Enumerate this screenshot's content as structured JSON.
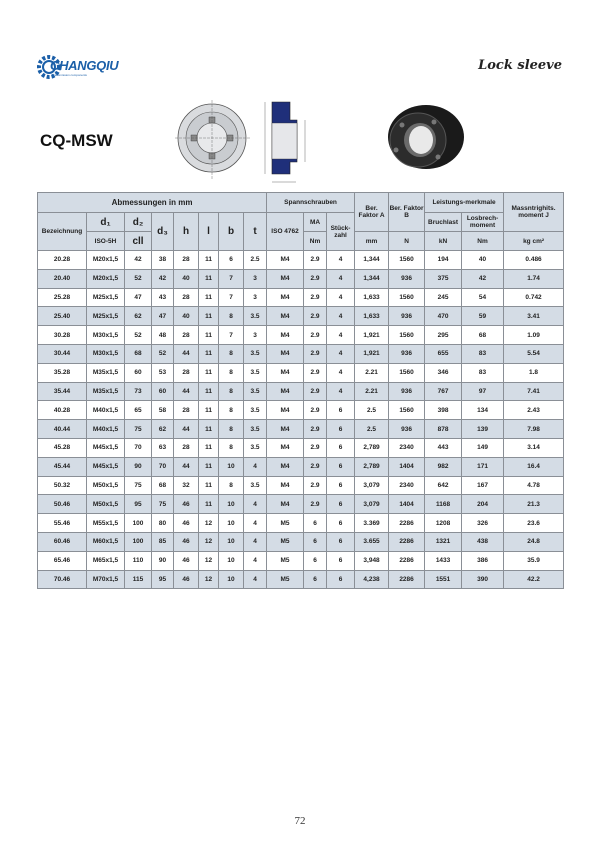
{
  "header": {
    "brand": "CHANGQIU",
    "brand_sub": "Transmission components",
    "category": "Lock sleeve",
    "model": "CQ-MSW"
  },
  "table": {
    "group_dims": "Abmessungen in mm",
    "group_screws": "Spannschrauben",
    "col_bez": "Bezeichnung",
    "col_d1": "d₁",
    "col_d1_sub": "ISO-5H",
    "col_d2": "d₂",
    "col_d2_sub": "cll",
    "col_d3": "d₃",
    "col_h": "h",
    "col_l": "l",
    "col_b": "b",
    "col_t": "t",
    "col_iso": "ISO 4762",
    "col_ma": "MA",
    "col_ma_unit": "Nm",
    "col_stueck": "Stück-zahl",
    "col_a": "Ber. Faktor A",
    "col_a_unit": "mm",
    "col_b2": "Ber. Faktor B",
    "col_b2_unit": "N",
    "group_perf": "Leistungs-merkmale",
    "col_bruch": "Bruchlast",
    "col_bruch_unit": "kN",
    "col_los": "Losbrech-moment",
    "col_los_unit": "Nm",
    "col_j": "Massntrighits. moment J",
    "col_j_unit": "kg cm²",
    "rows": [
      [
        "20.28",
        "M20x1,5",
        "42",
        "38",
        "28",
        "11",
        "6",
        "2.5",
        "M4",
        "2.9",
        "4",
        "1,344",
        "1560",
        "194",
        "40",
        "0.486"
      ],
      [
        "20.40",
        "M20x1,5",
        "52",
        "42",
        "40",
        "11",
        "7",
        "3",
        "M4",
        "2.9",
        "4",
        "1,344",
        "936",
        "375",
        "42",
        "1.74"
      ],
      [
        "25.28",
        "M25x1,5",
        "47",
        "43",
        "28",
        "11",
        "7",
        "3",
        "M4",
        "2.9",
        "4",
        "1,633",
        "1560",
        "245",
        "54",
        "0.742"
      ],
      [
        "25.40",
        "M25x1,5",
        "62",
        "47",
        "40",
        "11",
        "8",
        "3.5",
        "M4",
        "2.9",
        "4",
        "1,633",
        "936",
        "470",
        "59",
        "3.41"
      ],
      [
        "30.28",
        "M30x1,5",
        "52",
        "48",
        "28",
        "11",
        "7",
        "3",
        "M4",
        "2.9",
        "4",
        "1,921",
        "1560",
        "295",
        "68",
        "1.09"
      ],
      [
        "30.44",
        "M30x1,5",
        "68",
        "52",
        "44",
        "11",
        "8",
        "3.5",
        "M4",
        "2.9",
        "4",
        "1,921",
        "936",
        "655",
        "83",
        "5.54"
      ],
      [
        "35.28",
        "M35x1,5",
        "60",
        "53",
        "28",
        "11",
        "8",
        "3.5",
        "M4",
        "2.9",
        "4",
        "2.21",
        "1560",
        "346",
        "83",
        "1.8"
      ],
      [
        "35.44",
        "M35x1,5",
        "73",
        "60",
        "44",
        "11",
        "8",
        "3.5",
        "M4",
        "2.9",
        "4",
        "2.21",
        "936",
        "767",
        "97",
        "7.41"
      ],
      [
        "40.28",
        "M40x1,5",
        "65",
        "58",
        "28",
        "11",
        "8",
        "3.5",
        "M4",
        "2.9",
        "6",
        "2.5",
        "1560",
        "398",
        "134",
        "2.43"
      ],
      [
        "40.44",
        "M40x1,5",
        "75",
        "62",
        "44",
        "11",
        "8",
        "3.5",
        "M4",
        "2.9",
        "6",
        "2.5",
        "936",
        "878",
        "139",
        "7.98"
      ],
      [
        "45.28",
        "M45x1,5",
        "70",
        "63",
        "28",
        "11",
        "8",
        "3.5",
        "M4",
        "2.9",
        "6",
        "2,789",
        "2340",
        "443",
        "149",
        "3.14"
      ],
      [
        "45.44",
        "M45x1,5",
        "90",
        "70",
        "44",
        "11",
        "10",
        "4",
        "M4",
        "2.9",
        "6",
        "2,789",
        "1404",
        "982",
        "171",
        "16.4"
      ],
      [
        "50.32",
        "M50x1,5",
        "75",
        "68",
        "32",
        "11",
        "8",
        "3.5",
        "M4",
        "2.9",
        "6",
        "3,079",
        "2340",
        "642",
        "167",
        "4.78"
      ],
      [
        "50.46",
        "M50x1,5",
        "95",
        "75",
        "46",
        "11",
        "10",
        "4",
        "M4",
        "2.9",
        "6",
        "3,079",
        "1404",
        "1168",
        "204",
        "21.3"
      ],
      [
        "55.46",
        "M55x1,5",
        "100",
        "80",
        "46",
        "12",
        "10",
        "4",
        "M5",
        "6",
        "6",
        "3.369",
        "2286",
        "1208",
        "326",
        "23.6"
      ],
      [
        "60.46",
        "M60x1,5",
        "100",
        "85",
        "46",
        "12",
        "10",
        "4",
        "M5",
        "6",
        "6",
        "3.655",
        "2286",
        "1321",
        "438",
        "24.8"
      ],
      [
        "65.46",
        "M65x1,5",
        "110",
        "90",
        "46",
        "12",
        "10",
        "4",
        "M5",
        "6",
        "6",
        "3,948",
        "2286",
        "1433",
        "386",
        "35.9"
      ],
      [
        "70.46",
        "M70x1,5",
        "115",
        "95",
        "46",
        "12",
        "10",
        "4",
        "M5",
        "6",
        "6",
        "4,238",
        "2286",
        "1551",
        "390",
        "42.2"
      ]
    ]
  },
  "footer": {
    "page_number": "72"
  },
  "colors": {
    "brand": "#1b5fa8",
    "header_bg": "#d4dce5",
    "drawing_blue": "#1f2f7a"
  }
}
